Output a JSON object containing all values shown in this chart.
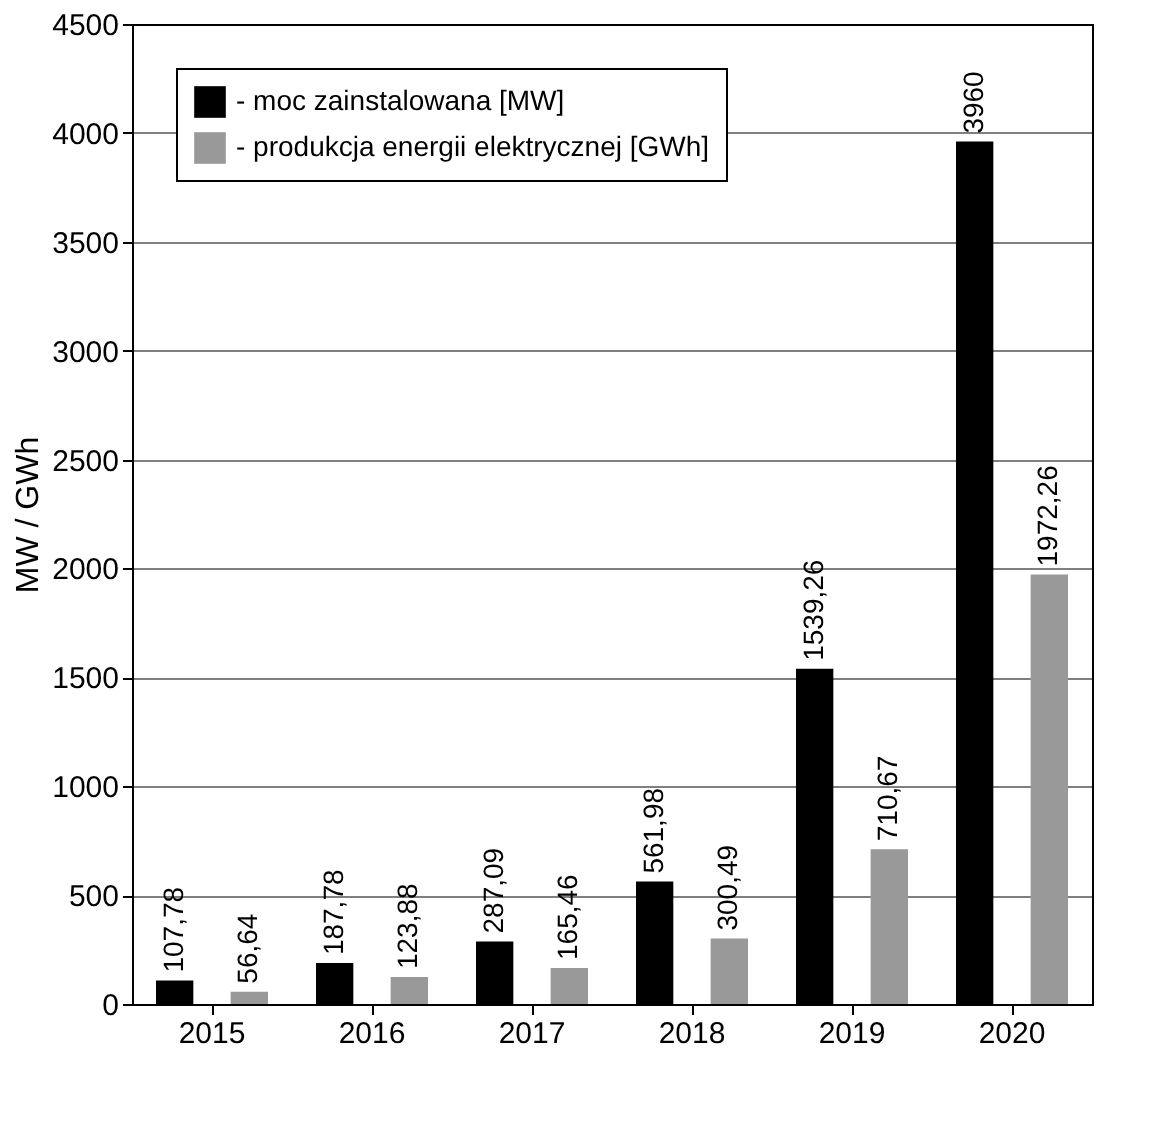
{
  "chart_data": {
    "type": "bar",
    "ylabel": "MW / GWh",
    "categories": [
      "2015",
      "2016",
      "2017",
      "2018",
      "2019",
      "2020"
    ],
    "series": [
      {
        "name": "- moc zainstalowana [MW]",
        "color": "#000000",
        "values": [
          107.78,
          187.78,
          287.09,
          561.98,
          1539.26,
          3960
        ],
        "value_labels": [
          "107,78",
          "187,78",
          "287,09",
          "561,98",
          "1539,26",
          "3960"
        ]
      },
      {
        "name": "- produkcja energii elektrycznej [GWh]",
        "color": "#999999",
        "values": [
          56.64,
          123.88,
          165.46,
          300.49,
          710.67,
          1972.26
        ],
        "value_labels": [
          "56,64",
          "123,88",
          "165,46",
          "300,49",
          "710,67",
          "1972,26"
        ]
      }
    ],
    "ylim": [
      0,
      4500
    ],
    "yticks": [
      0,
      500,
      1000,
      1500,
      2000,
      2500,
      3000,
      3500,
      4000,
      4500
    ],
    "grid": "y",
    "legend": "top left"
  }
}
